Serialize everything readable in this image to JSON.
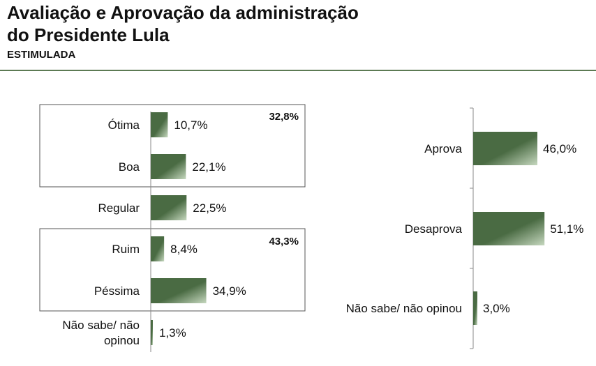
{
  "header": {
    "title_line1": "Avaliação e Aprovação da administração",
    "title_line2": "do Presidente Lula",
    "subtitle": "ESTIMULADA"
  },
  "colors": {
    "bar_dark": "#4a6b43",
    "bar_light": "#c6d8bf",
    "rule": "#5c7a54",
    "box_border": "#555555",
    "axis": "#888888"
  },
  "chart_data": [
    {
      "type": "bar",
      "orientation": "horizontal",
      "categories": [
        "Ótima",
        "Boa",
        "Regular",
        "Ruim",
        "Péssima",
        "Não sabe/ não opinou"
      ],
      "values": [
        10.7,
        22.1,
        22.5,
        8.4,
        34.9,
        1.3
      ],
      "value_labels": [
        "10,7%",
        "22,1%",
        "22,5%",
        "8,4%",
        "34,9%",
        "1,3%"
      ],
      "groups": [
        {
          "categories": [
            "Ótima",
            "Boa"
          ],
          "total_label": "32,8%"
        },
        {
          "categories": [
            "Ruim",
            "Péssima"
          ],
          "total_label": "43,3%"
        }
      ],
      "xlim": [
        0,
        100
      ]
    },
    {
      "type": "bar",
      "orientation": "horizontal",
      "categories": [
        "Aprova",
        "Desaprova",
        "Não sabe/ não opinou"
      ],
      "values": [
        46.0,
        51.1,
        3.0
      ],
      "value_labels": [
        "46,0%",
        "51,1%",
        "3,0%"
      ],
      "xlim": [
        0,
        100
      ]
    }
  ]
}
